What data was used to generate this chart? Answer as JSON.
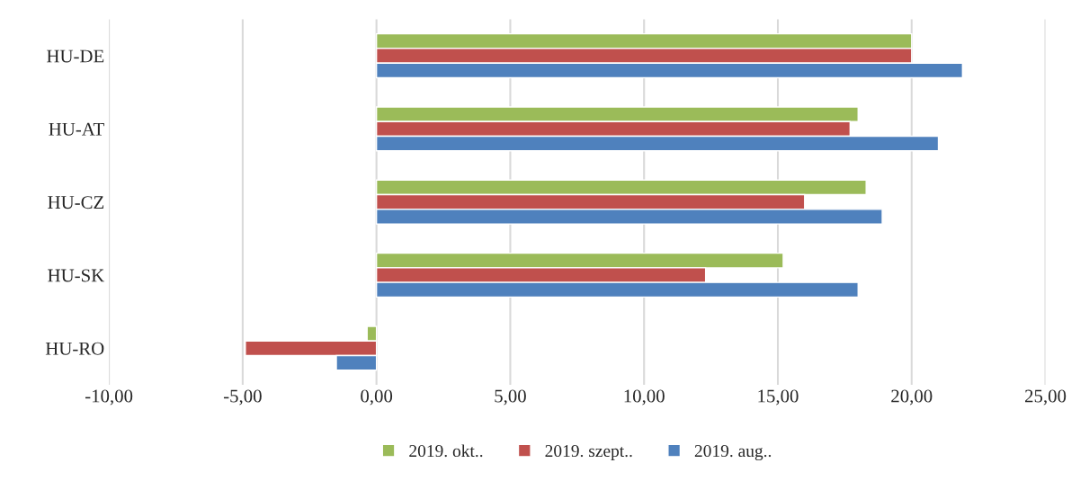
{
  "chart_data": {
    "type": "bar",
    "orientation": "horizontal",
    "categories": [
      "HU-DE",
      "HU-AT",
      "HU-CZ",
      "HU-SK",
      "HU-RO"
    ],
    "series": [
      {
        "name": "2019. okt..",
        "color": "#9bbb59",
        "values": [
          20.0,
          18.0,
          18.3,
          15.2,
          -0.35
        ]
      },
      {
        "name": "2019. szept..",
        "color": "#c0504d",
        "values": [
          20.0,
          17.7,
          16.0,
          12.3,
          -4.9
        ]
      },
      {
        "name": "2019. aug..",
        "color": "#4f81bd",
        "values": [
          21.9,
          21.0,
          18.9,
          18.0,
          -1.5
        ]
      }
    ],
    "xlim": [
      -10,
      25
    ],
    "xticks": [
      {
        "value": -10,
        "label": "-10,00"
      },
      {
        "value": -5,
        "label": "-5,00"
      },
      {
        "value": 0,
        "label": "0,00"
      },
      {
        "value": 5,
        "label": "5,00"
      },
      {
        "value": 10,
        "label": "10,00"
      },
      {
        "value": 15,
        "label": "15,00"
      },
      {
        "value": 20,
        "label": "20,00"
      },
      {
        "value": 25,
        "label": "25,00"
      }
    ],
    "grid": "x",
    "legend": "bottom"
  }
}
